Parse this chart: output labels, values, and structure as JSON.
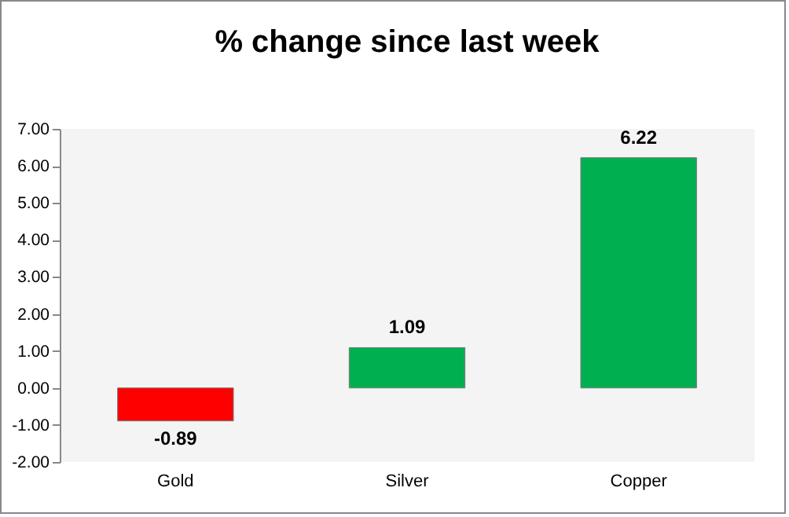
{
  "chart_data": {
    "type": "bar",
    "title": "% change since last week",
    "categories": [
      "Gold",
      "Silver",
      "Copper"
    ],
    "values": [
      -0.89,
      1.09,
      6.22
    ],
    "colors": [
      "#ff0000",
      "#00b050",
      "#00b050"
    ],
    "ylim": [
      -2,
      7
    ],
    "yticks": [
      {
        "value": -2,
        "label": "-2.00"
      },
      {
        "value": -1,
        "label": "-1.00"
      },
      {
        "value": 0,
        "label": "0.00"
      },
      {
        "value": 1,
        "label": "1.00"
      },
      {
        "value": 2,
        "label": "2.00"
      },
      {
        "value": 3,
        "label": "3.00"
      },
      {
        "value": 4,
        "label": "4.00"
      },
      {
        "value": 5,
        "label": "5.00"
      },
      {
        "value": 6,
        "label": "6.00"
      },
      {
        "value": 7,
        "label": "7.00"
      }
    ],
    "grid": false,
    "data_labels": true
  }
}
